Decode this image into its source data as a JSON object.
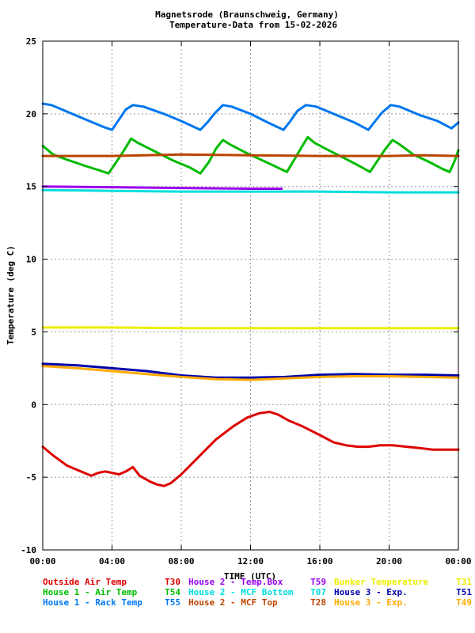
{
  "chart_data": {
    "type": "line",
    "title_lines": [
      "Magnetsrode (Braunschweig, Germany)",
      "Temperature-Data from 15-02-2026"
    ],
    "xlabel": "TIME (UTC)",
    "ylabel": "Temperature (deg C)",
    "x_unit": "hours UTC",
    "xlim": [
      0,
      24
    ],
    "ylim": [
      -10,
      25
    ],
    "xticks": [
      {
        "value": 0,
        "label": "00:00"
      },
      {
        "value": 4,
        "label": "04:00"
      },
      {
        "value": 8,
        "label": "08:00"
      },
      {
        "value": 12,
        "label": "12:00"
      },
      {
        "value": 16,
        "label": "16:00"
      },
      {
        "value": 20,
        "label": "20:00"
      },
      {
        "value": 24,
        "label": "00:00"
      }
    ],
    "yticks": [
      {
        "value": -10,
        "label": "-10"
      },
      {
        "value": -5,
        "label": "-5"
      },
      {
        "value": 0,
        "label": "0"
      },
      {
        "value": 5,
        "label": "5"
      },
      {
        "value": 10,
        "label": "10"
      },
      {
        "value": 15,
        "label": "15"
      },
      {
        "value": 20,
        "label": "20"
      },
      {
        "value": 25,
        "label": "25"
      }
    ],
    "grid": true,
    "legend_position": "bottom",
    "series": [
      {
        "id": "t30",
        "name": "Outside Air Temp",
        "code": "T30",
        "color": "#dd0000",
        "points": [
          [
            0,
            -2.9
          ],
          [
            0.6,
            -3.5
          ],
          [
            1.4,
            -4.2
          ],
          [
            2,
            -4.5
          ],
          [
            2.8,
            -4.9
          ],
          [
            3.2,
            -4.7
          ],
          [
            3.6,
            -4.6
          ],
          [
            4,
            -4.7
          ],
          [
            4.4,
            -4.8
          ],
          [
            4.8,
            -4.6
          ],
          [
            5.2,
            -4.3
          ],
          [
            5.6,
            -4.9
          ],
          [
            6.2,
            -5.3
          ],
          [
            6.6,
            -5.5
          ],
          [
            7,
            -5.6
          ],
          [
            7.4,
            -5.4
          ],
          [
            8,
            -4.8
          ],
          [
            9,
            -3.6
          ],
          [
            10,
            -2.4
          ],
          [
            11,
            -1.5
          ],
          [
            11.8,
            -0.9
          ],
          [
            12.5,
            -0.6
          ],
          [
            13.1,
            -0.5
          ],
          [
            13.6,
            -0.7
          ],
          [
            14.2,
            -1.1
          ],
          [
            15,
            -1.5
          ],
          [
            16,
            -2.1
          ],
          [
            16.8,
            -2.6
          ],
          [
            17.5,
            -2.8
          ],
          [
            18.2,
            -2.9
          ],
          [
            18.8,
            -2.9
          ],
          [
            19.5,
            -2.8
          ],
          [
            20.2,
            -2.8
          ],
          [
            21,
            -2.9
          ],
          [
            21.8,
            -3
          ],
          [
            22.5,
            -3.1
          ],
          [
            23.2,
            -3.1
          ],
          [
            24,
            -3.1
          ]
        ]
      },
      {
        "id": "t54",
        "name": "House 1 - Air  Temp",
        "code": "T54",
        "color": "#00bb00",
        "points": [
          [
            0,
            17.8
          ],
          [
            0.6,
            17.2
          ],
          [
            1.5,
            16.8
          ],
          [
            2.5,
            16.4
          ],
          [
            3.3,
            16.1
          ],
          [
            3.8,
            15.9
          ],
          [
            4.2,
            16.6
          ],
          [
            4.7,
            17.5
          ],
          [
            5.1,
            18.3
          ],
          [
            5.5,
            18
          ],
          [
            6.5,
            17.4
          ],
          [
            7.5,
            16.8
          ],
          [
            8.5,
            16.3
          ],
          [
            9.1,
            15.9
          ],
          [
            9.6,
            16.7
          ],
          [
            10,
            17.6
          ],
          [
            10.4,
            18.2
          ],
          [
            10.8,
            17.9
          ],
          [
            11.6,
            17.4
          ],
          [
            12.5,
            16.9
          ],
          [
            13.4,
            16.4
          ],
          [
            14.1,
            16
          ],
          [
            14.5,
            16.8
          ],
          [
            14.9,
            17.6
          ],
          [
            15.3,
            18.4
          ],
          [
            15.7,
            18
          ],
          [
            16.5,
            17.5
          ],
          [
            17.5,
            16.9
          ],
          [
            18.3,
            16.4
          ],
          [
            18.9,
            16
          ],
          [
            19.4,
            16.9
          ],
          [
            19.8,
            17.6
          ],
          [
            20.2,
            18.2
          ],
          [
            20.6,
            17.9
          ],
          [
            21.4,
            17.2
          ],
          [
            22.3,
            16.7
          ],
          [
            23.1,
            16.2
          ],
          [
            23.5,
            16
          ],
          [
            23.8,
            16.8
          ],
          [
            24,
            17.5
          ]
        ]
      },
      {
        "id": "t55",
        "name": "House 1 - Rack Temp",
        "code": "T55",
        "color": "#0077ee",
        "points": [
          [
            0,
            20.7
          ],
          [
            0.5,
            20.6
          ],
          [
            1.5,
            20.1
          ],
          [
            2.5,
            19.6
          ],
          [
            3.5,
            19.1
          ],
          [
            4,
            18.9
          ],
          [
            4.4,
            19.6
          ],
          [
            4.8,
            20.3
          ],
          [
            5.2,
            20.6
          ],
          [
            5.8,
            20.5
          ],
          [
            7,
            20
          ],
          [
            8,
            19.5
          ],
          [
            9.1,
            18.9
          ],
          [
            9.5,
            19.4
          ],
          [
            9.9,
            20
          ],
          [
            10.4,
            20.6
          ],
          [
            10.9,
            20.5
          ],
          [
            12,
            20
          ],
          [
            13,
            19.4
          ],
          [
            13.9,
            18.9
          ],
          [
            14.3,
            19.5
          ],
          [
            14.7,
            20.2
          ],
          [
            15.2,
            20.6
          ],
          [
            15.8,
            20.5
          ],
          [
            17,
            19.9
          ],
          [
            18,
            19.4
          ],
          [
            18.8,
            18.9
          ],
          [
            19.2,
            19.5
          ],
          [
            19.6,
            20.1
          ],
          [
            20.1,
            20.6
          ],
          [
            20.6,
            20.5
          ],
          [
            21.8,
            19.9
          ],
          [
            22.8,
            19.5
          ],
          [
            23.6,
            19
          ],
          [
            24,
            19.4
          ]
        ]
      },
      {
        "id": "t59",
        "name": "House 2 - Temp.Box",
        "code": "T59",
        "color": "#9900ee",
        "points": [
          [
            0,
            15
          ],
          [
            4,
            14.95
          ],
          [
            8,
            14.9
          ],
          [
            12,
            14.85
          ],
          [
            13.8,
            14.85
          ]
        ]
      },
      {
        "id": "t07",
        "name": "House 2 - MCF Bottom",
        "code": "T07",
        "color": "#00dddd",
        "points": [
          [
            0,
            14.75
          ],
          [
            4,
            14.7
          ],
          [
            8,
            14.65
          ],
          [
            12,
            14.65
          ],
          [
            16,
            14.65
          ],
          [
            20,
            14.6
          ],
          [
            24,
            14.6
          ]
        ]
      },
      {
        "id": "t28",
        "name": "House 2 - MCF Top",
        "code": "T28",
        "color": "#bb4400",
        "points": [
          [
            0,
            17.1
          ],
          [
            4,
            17.1
          ],
          [
            8,
            17.2
          ],
          [
            12,
            17.15
          ],
          [
            16,
            17.1
          ],
          [
            20,
            17.1
          ],
          [
            22,
            17.15
          ],
          [
            24,
            17.1
          ]
        ]
      },
      {
        "id": "t31",
        "name": "Bunker Temperature",
        "code": "T31",
        "color": "#eeee00",
        "points": [
          [
            0,
            5.3
          ],
          [
            4,
            5.3
          ],
          [
            8,
            5.25
          ],
          [
            12,
            5.25
          ],
          [
            16,
            5.25
          ],
          [
            20,
            5.25
          ],
          [
            24,
            5.25
          ]
        ]
      },
      {
        "id": "t51",
        "name": "House 3 - Exp.",
        "code": "T51",
        "color": "#0000aa",
        "points": [
          [
            0,
            2.8
          ],
          [
            2,
            2.7
          ],
          [
            4,
            2.5
          ],
          [
            6,
            2.3
          ],
          [
            8,
            2
          ],
          [
            10,
            1.85
          ],
          [
            12,
            1.85
          ],
          [
            14,
            1.9
          ],
          [
            16,
            2.05
          ],
          [
            18,
            2.1
          ],
          [
            20,
            2.05
          ],
          [
            22,
            2.05
          ],
          [
            24,
            2
          ]
        ]
      },
      {
        "id": "t49",
        "name": "House 3 - Exp.",
        "code": "T49",
        "color": "#ffaa00",
        "points": [
          [
            0,
            2.65
          ],
          [
            2,
            2.5
          ],
          [
            4,
            2.3
          ],
          [
            6,
            2.1
          ],
          [
            8,
            1.9
          ],
          [
            10,
            1.75
          ],
          [
            12,
            1.7
          ],
          [
            14,
            1.8
          ],
          [
            16,
            1.9
          ],
          [
            18,
            1.95
          ],
          [
            20,
            1.95
          ],
          [
            22,
            1.9
          ],
          [
            24,
            1.85
          ]
        ]
      }
    ],
    "legend_rows": [
      [
        "t30",
        "t59",
        "t31"
      ],
      [
        "t54",
        "t07",
        "t51"
      ],
      [
        "t55",
        "t28",
        "t49"
      ]
    ]
  }
}
